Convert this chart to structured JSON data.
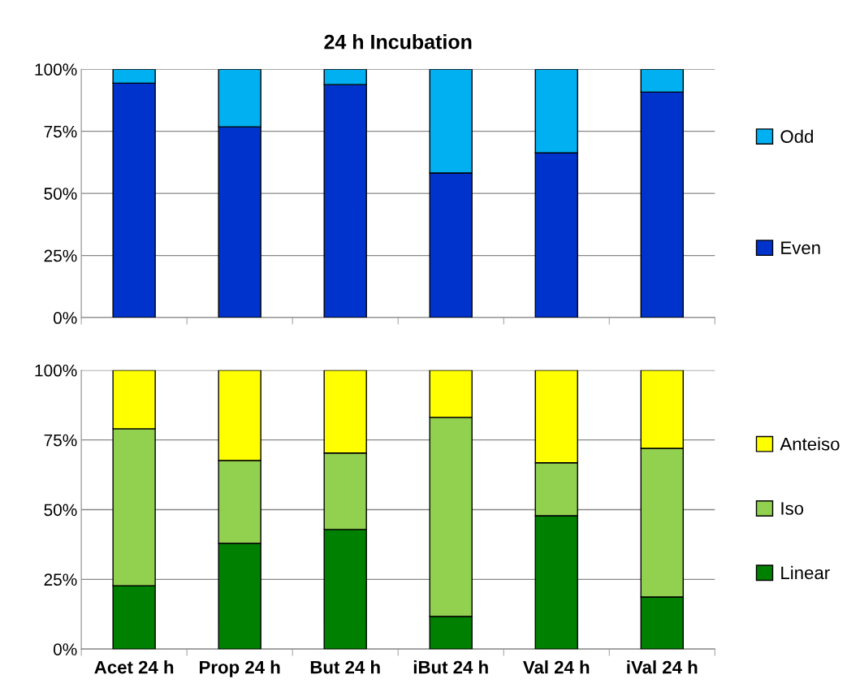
{
  "chart_data": [
    {
      "type": "bar",
      "title": "24 h Incubation",
      "stacked": true,
      "categories": [
        null,
        null,
        null,
        null,
        null,
        null
      ],
      "tick_labels": "y",
      "ylim": [
        0,
        100
      ],
      "yticks": [
        {
          "value": 0,
          "label": "0%"
        },
        {
          "value": 25,
          "label": "25%"
        },
        {
          "value": 50,
          "label": "50%"
        },
        {
          "value": 75,
          "label": "75%"
        },
        {
          "value": 100,
          "label": "100%"
        }
      ],
      "grid": "y",
      "legend": "right",
      "series": [
        {
          "name": "Even",
          "color": "#0033cc",
          "values": [
            94.4,
            76.8,
            93.8,
            58.2,
            66.3,
            90.8
          ]
        },
        {
          "name": "Odd",
          "color": "#00b0f0",
          "values": [
            5.6,
            23.2,
            6.2,
            41.8,
            33.7,
            9.2
          ]
        }
      ]
    },
    {
      "type": "bar",
      "stacked": true,
      "categories": [
        "Acet 24 h",
        "Prop 24 h",
        "But 24 h",
        "iBut 24 h",
        "Val 24 h",
        "iVal 24 h"
      ],
      "ylim": [
        0,
        100
      ],
      "yticks": [
        {
          "value": 0,
          "label": "0%"
        },
        {
          "value": 25,
          "label": "25%"
        },
        {
          "value": 50,
          "label": "50%"
        },
        {
          "value": 75,
          "label": "75%"
        },
        {
          "value": 100,
          "label": "100%"
        }
      ],
      "grid": "y",
      "legend": "right",
      "series": [
        {
          "name": "Linear",
          "color": "#008000",
          "values": [
            22.7,
            37.9,
            42.9,
            11.7,
            47.8,
            18.7
          ]
        },
        {
          "name": "Iso",
          "color": "#92d050",
          "values": [
            56.3,
            29.7,
            27.4,
            71.4,
            19.0,
            53.3
          ]
        },
        {
          "name": "Anteiso",
          "color": "#ffff00",
          "values": [
            21.0,
            32.4,
            29.7,
            16.9,
            33.2,
            28.0
          ]
        }
      ]
    }
  ]
}
